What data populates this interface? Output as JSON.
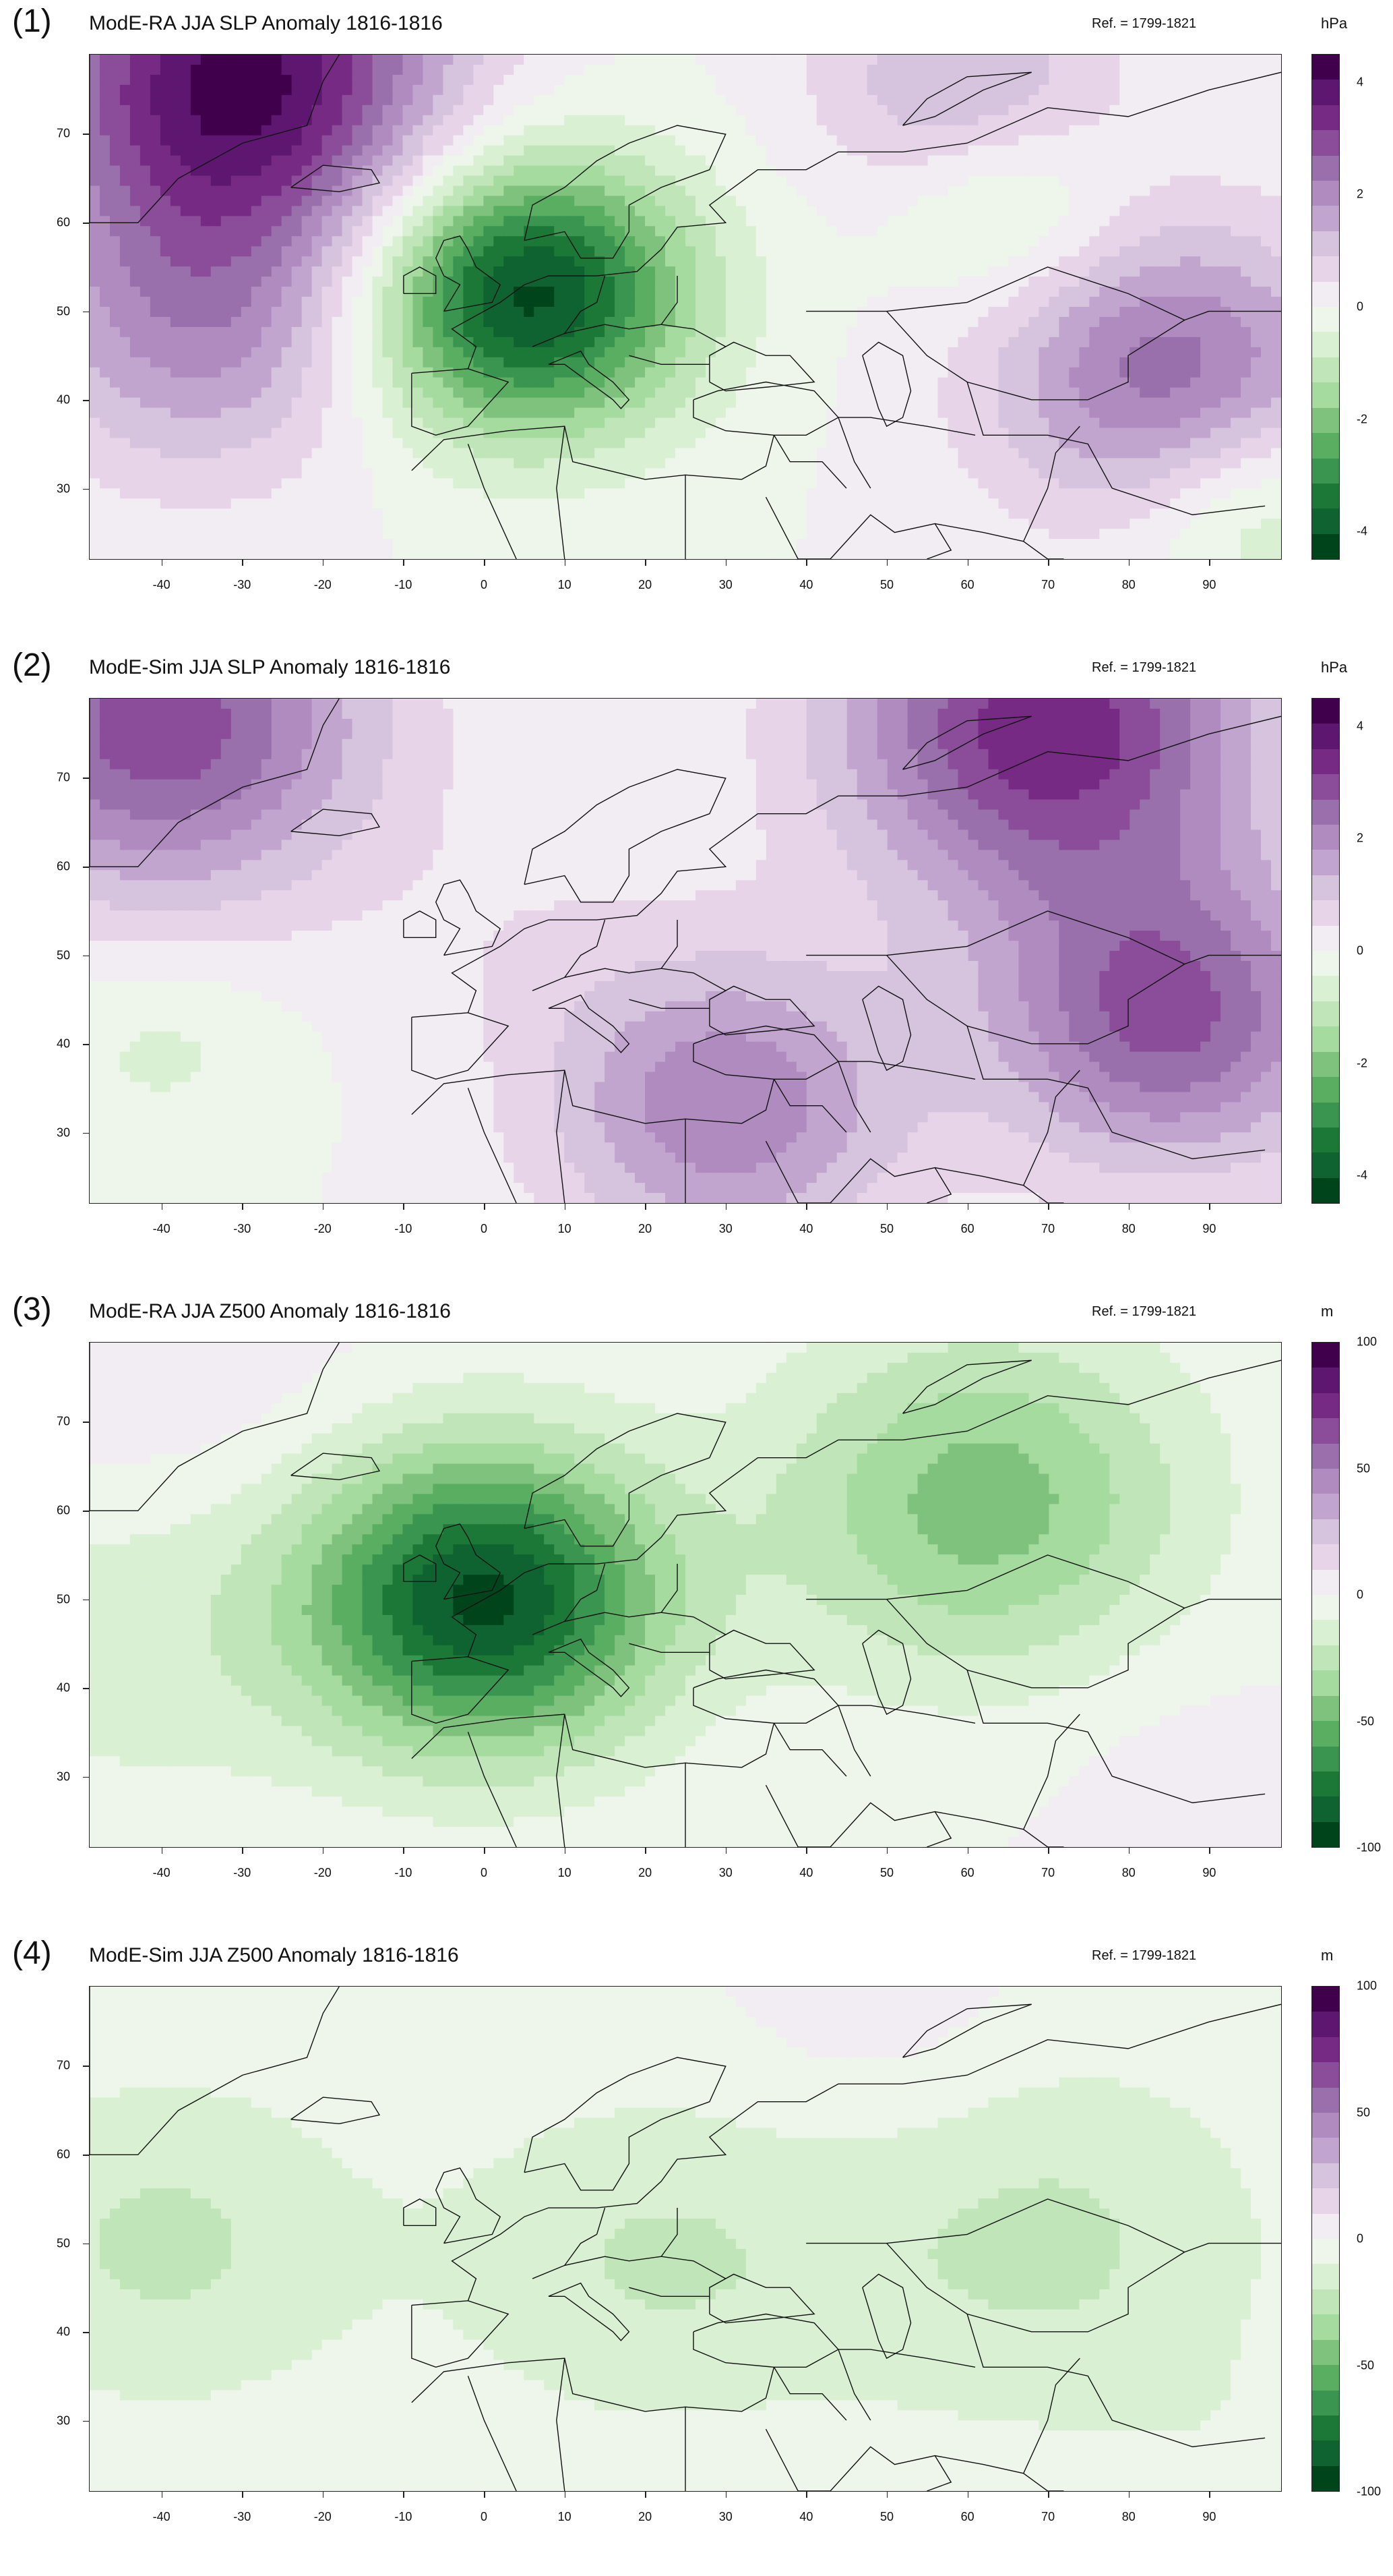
{
  "panels": [
    {
      "label": "(1)",
      "title": "ModE-RA JJA SLP Anomaly 1816-1816",
      "ref": "Ref. = 1799-1821",
      "unit": "hPa",
      "cbar_ticks": [
        "4",
        "2",
        "0",
        "-2",
        "-4"
      ],
      "cbar_tick_values": [
        4,
        2,
        0,
        -2,
        -4
      ],
      "cbar_range": [
        -4.5,
        4.5
      ],
      "pattern": [
        {
          "lon": -30,
          "lat": 76,
          "value": 4.2,
          "spread": 14
        },
        {
          "lon": 5,
          "lat": 52,
          "value": -4.3,
          "spread": 11
        },
        {
          "lon": 85,
          "lat": 43,
          "value": 2.5,
          "spread": 12
        },
        {
          "lon": 65,
          "lat": 62,
          "value": -1.2,
          "spread": 8
        },
        {
          "lon": -35,
          "lat": 48,
          "value": 1.8,
          "spread": 12
        },
        {
          "lon": 60,
          "lat": 75,
          "value": 1.5,
          "spread": 10
        },
        {
          "lon": 95,
          "lat": 28,
          "value": -1.2,
          "spread": 8
        }
      ]
    },
    {
      "label": "(2)",
      "title": "ModE-Sim JJA SLP Anomaly 1816-1816",
      "ref": "Ref. = 1799-1821",
      "unit": "hPa",
      "cbar_ticks": [
        "4",
        "2",
        "0",
        "-2",
        "-4"
      ],
      "cbar_tick_values": [
        4,
        2,
        0,
        -2,
        -4
      ],
      "cbar_range": [
        -4.5,
        4.5
      ],
      "pattern": [
        {
          "lon": -40,
          "lat": 76,
          "value": 3.0,
          "spread": 14
        },
        {
          "lon": 70,
          "lat": 76,
          "value": 3.5,
          "spread": 14
        },
        {
          "lon": 85,
          "lat": 43,
          "value": 2.8,
          "spread": 12
        },
        {
          "lon": 30,
          "lat": 33,
          "value": 2.2,
          "spread": 12
        },
        {
          "lon": 5,
          "lat": 52,
          "value": 0.3,
          "spread": 10
        },
        {
          "lon": -40,
          "lat": 40,
          "value": -0.6,
          "spread": 8
        }
      ]
    },
    {
      "label": "(3)",
      "title": "ModE-RA JJA Z500 Anomaly 1816-1816",
      "ref": "Ref. = 1799-1821",
      "unit": "m",
      "cbar_ticks": [
        "100",
        "50",
        "0",
        "-50",
        "-100"
      ],
      "cbar_tick_values": [
        100,
        50,
        0,
        -50,
        -100
      ],
      "cbar_range": [
        -100,
        100
      ],
      "pattern": [
        {
          "lon": 0,
          "lat": 50,
          "value": -92,
          "spread": 12
        },
        {
          "lon": 62,
          "lat": 61,
          "value": -45,
          "spread": 14
        },
        {
          "lon": -40,
          "lat": 78,
          "value": 10,
          "spread": 12
        },
        {
          "lon": -45,
          "lat": 45,
          "value": -15,
          "spread": 14
        },
        {
          "lon": 85,
          "lat": 32,
          "value": 5,
          "spread": 10
        }
      ]
    },
    {
      "label": "(4)",
      "title": "ModE-Sim JJA Z500 Anomaly 1816-1816",
      "ref": "Ref. = 1799-1821",
      "unit": "m",
      "cbar_ticks": [
        "100",
        "50",
        "0",
        "-50",
        "-100"
      ],
      "cbar_tick_values": [
        100,
        50,
        0,
        -50,
        -100
      ],
      "cbar_range": [
        -100,
        100
      ],
      "pattern": [
        {
          "lon": -40,
          "lat": 50,
          "value": -22,
          "spread": 14
        },
        {
          "lon": 20,
          "lat": 48,
          "value": -20,
          "spread": 14
        },
        {
          "lon": 70,
          "lat": 50,
          "value": -22,
          "spread": 16
        },
        {
          "lon": 50,
          "lat": 75,
          "value": 8,
          "spread": 10
        },
        {
          "lon": 95,
          "lat": 25,
          "value": -5,
          "spread": 8
        }
      ]
    }
  ],
  "x_ticks": [
    "-40",
    "-30",
    "-20",
    "-10",
    "0",
    "10",
    "20",
    "30",
    "40",
    "50",
    "60",
    "70",
    "80",
    "90"
  ],
  "x_tick_values": [
    -40,
    -30,
    -20,
    -10,
    0,
    10,
    20,
    30,
    40,
    50,
    60,
    70,
    80,
    90
  ],
  "y_ticks": [
    "70",
    "60",
    "50",
    "40",
    "30"
  ],
  "y_tick_values": [
    70,
    60,
    50,
    40,
    30
  ],
  "lon_range": [
    -49,
    99
  ],
  "lat_range": [
    22,
    79
  ],
  "palette": [
    "#40004b",
    "#5e1770",
    "#762a83",
    "#8b4d99",
    "#9970ab",
    "#b08bbf",
    "#c2a5cf",
    "#d6c4df",
    "#e7d4e8",
    "#f2ecf3",
    "#eef5eb",
    "#d9f0d3",
    "#c0e5b8",
    "#a6dba0",
    "#7fc27d",
    "#5aae61",
    "#3a9550",
    "#1b7837",
    "#0f6330",
    "#00441b"
  ],
  "coastline_color": "#111111",
  "chart_data": [
    {
      "type": "heatmap",
      "title": "ModE-RA JJA SLP Anomaly 1816-1816",
      "xlabel": "",
      "ylabel": "",
      "xlim": [
        -49,
        99
      ],
      "ylim": [
        22,
        79
      ],
      "colorbar_label": "hPa",
      "colorbar_range": [
        -4.5,
        4.5
      ],
      "grid": false
    },
    {
      "type": "heatmap",
      "title": "ModE-Sim JJA SLP Anomaly 1816-1816",
      "xlabel": "",
      "ylabel": "",
      "xlim": [
        -49,
        99
      ],
      "ylim": [
        22,
        79
      ],
      "colorbar_label": "hPa",
      "colorbar_range": [
        -4.5,
        4.5
      ],
      "grid": false
    },
    {
      "type": "heatmap",
      "title": "ModE-RA JJA Z500 Anomaly 1816-1816",
      "xlabel": "",
      "ylabel": "",
      "xlim": [
        -49,
        99
      ],
      "ylim": [
        22,
        79
      ],
      "colorbar_label": "m",
      "colorbar_range": [
        -100,
        100
      ],
      "grid": false
    },
    {
      "type": "heatmap",
      "title": "ModE-Sim JJA Z500 Anomaly 1816-1816",
      "xlabel": "",
      "ylabel": "",
      "xlim": [
        -49,
        99
      ],
      "ylim": [
        22,
        79
      ],
      "colorbar_label": "m",
      "colorbar_range": [
        -100,
        100
      ],
      "grid": false
    }
  ]
}
